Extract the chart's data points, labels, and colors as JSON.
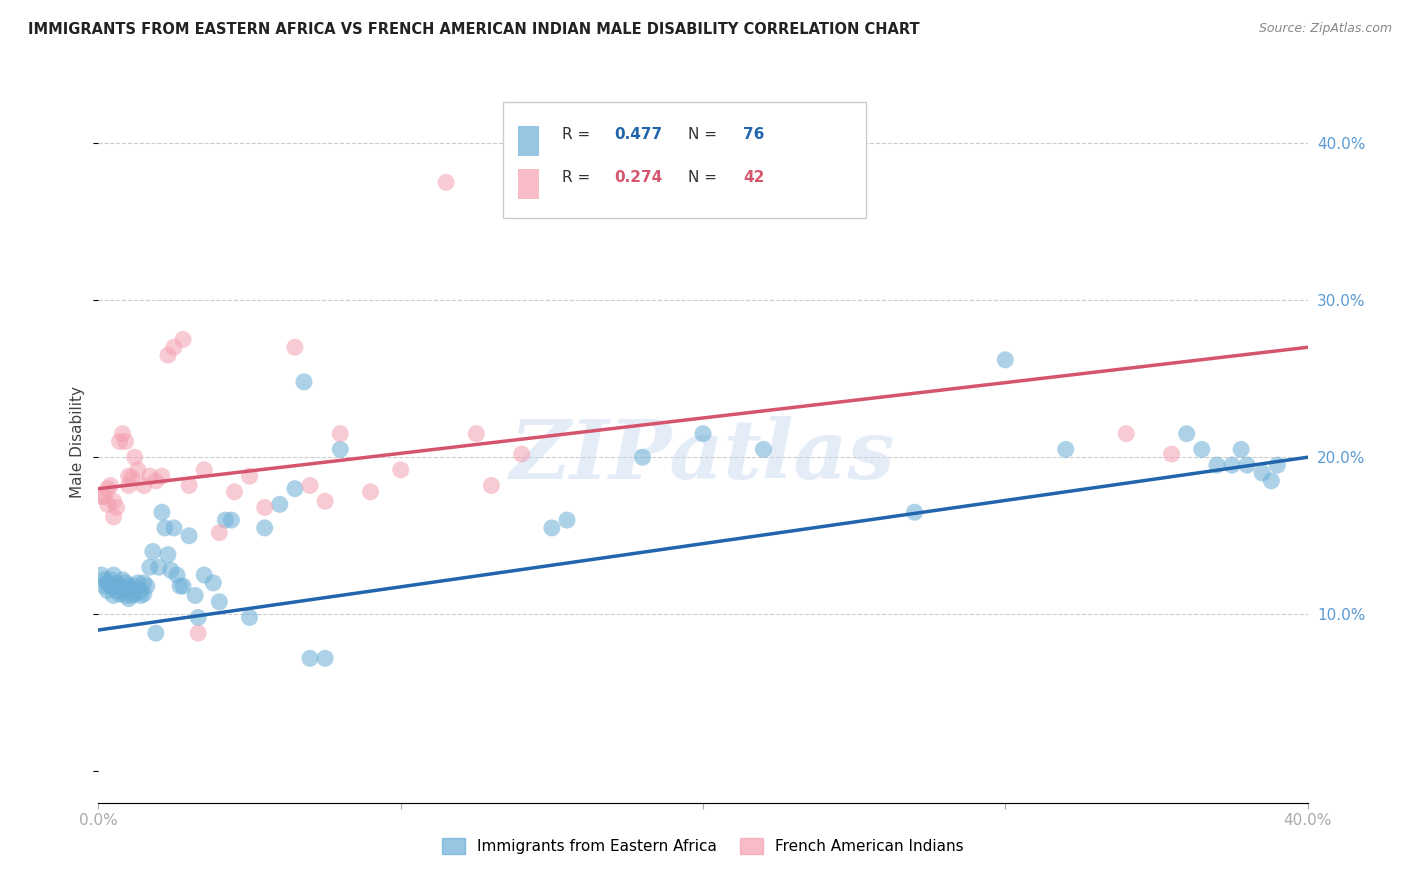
{
  "title": "IMMIGRANTS FROM EASTERN AFRICA VS FRENCH AMERICAN INDIAN MALE DISABILITY CORRELATION CHART",
  "source": "Source: ZipAtlas.com",
  "ylabel": "Male Disability",
  "xlim": [
    0.0,
    0.4
  ],
  "ylim": [
    -0.02,
    0.44
  ],
  "blue_color": "#6baed6",
  "pink_color": "#f4a0b0",
  "line_blue": "#2166ac",
  "line_pink": "#d6556e",
  "watermark": "ZIPatlas",
  "blue_line_x0": 0.0,
  "blue_line_y0": 0.09,
  "blue_line_x1": 0.4,
  "blue_line_y1": 0.2,
  "pink_line_x0": 0.0,
  "pink_line_y0": 0.18,
  "pink_line_x1": 0.4,
  "pink_line_y1": 0.27,
  "blue_scatter_x": [
    0.001,
    0.002,
    0.002,
    0.003,
    0.003,
    0.004,
    0.004,
    0.005,
    0.005,
    0.005,
    0.006,
    0.006,
    0.007,
    0.007,
    0.008,
    0.008,
    0.009,
    0.009,
    0.01,
    0.01,
    0.01,
    0.011,
    0.011,
    0.012,
    0.012,
    0.013,
    0.014,
    0.014,
    0.015,
    0.015,
    0.016,
    0.017,
    0.018,
    0.019,
    0.02,
    0.021,
    0.022,
    0.023,
    0.024,
    0.025,
    0.026,
    0.027,
    0.028,
    0.03,
    0.032,
    0.033,
    0.035,
    0.038,
    0.04,
    0.042,
    0.044,
    0.05,
    0.055,
    0.06,
    0.065,
    0.068,
    0.07,
    0.075,
    0.08,
    0.15,
    0.155,
    0.18,
    0.2,
    0.22,
    0.27,
    0.3,
    0.32,
    0.36,
    0.365,
    0.37,
    0.375,
    0.378,
    0.38,
    0.385,
    0.388,
    0.39
  ],
  "blue_scatter_y": [
    0.125,
    0.118,
    0.122,
    0.115,
    0.12,
    0.118,
    0.122,
    0.112,
    0.118,
    0.125,
    0.115,
    0.12,
    0.113,
    0.118,
    0.122,
    0.116,
    0.112,
    0.12,
    0.11,
    0.115,
    0.118,
    0.112,
    0.116,
    0.113,
    0.118,
    0.12,
    0.115,
    0.112,
    0.12,
    0.113,
    0.118,
    0.13,
    0.14,
    0.088,
    0.13,
    0.165,
    0.155,
    0.138,
    0.128,
    0.155,
    0.125,
    0.118,
    0.118,
    0.15,
    0.112,
    0.098,
    0.125,
    0.12,
    0.108,
    0.16,
    0.16,
    0.098,
    0.155,
    0.17,
    0.18,
    0.248,
    0.072,
    0.072,
    0.205,
    0.155,
    0.16,
    0.2,
    0.215,
    0.205,
    0.165,
    0.262,
    0.205,
    0.215,
    0.205,
    0.195,
    0.195,
    0.205,
    0.195,
    0.19,
    0.185,
    0.195
  ],
  "pink_scatter_x": [
    0.001,
    0.002,
    0.003,
    0.003,
    0.004,
    0.005,
    0.005,
    0.006,
    0.007,
    0.008,
    0.009,
    0.01,
    0.01,
    0.011,
    0.012,
    0.013,
    0.015,
    0.017,
    0.019,
    0.021,
    0.023,
    0.025,
    0.028,
    0.03,
    0.033,
    0.035,
    0.04,
    0.045,
    0.05,
    0.055,
    0.065,
    0.07,
    0.075,
    0.08,
    0.09,
    0.1,
    0.115,
    0.125,
    0.13,
    0.14,
    0.34,
    0.355
  ],
  "pink_scatter_y": [
    0.175,
    0.175,
    0.18,
    0.17,
    0.182,
    0.172,
    0.162,
    0.168,
    0.21,
    0.215,
    0.21,
    0.182,
    0.188,
    0.187,
    0.2,
    0.192,
    0.182,
    0.188,
    0.185,
    0.188,
    0.265,
    0.27,
    0.275,
    0.182,
    0.088,
    0.192,
    0.152,
    0.178,
    0.188,
    0.168,
    0.27,
    0.182,
    0.172,
    0.215,
    0.178,
    0.192,
    0.375,
    0.215,
    0.182,
    0.202,
    0.215,
    0.202
  ]
}
